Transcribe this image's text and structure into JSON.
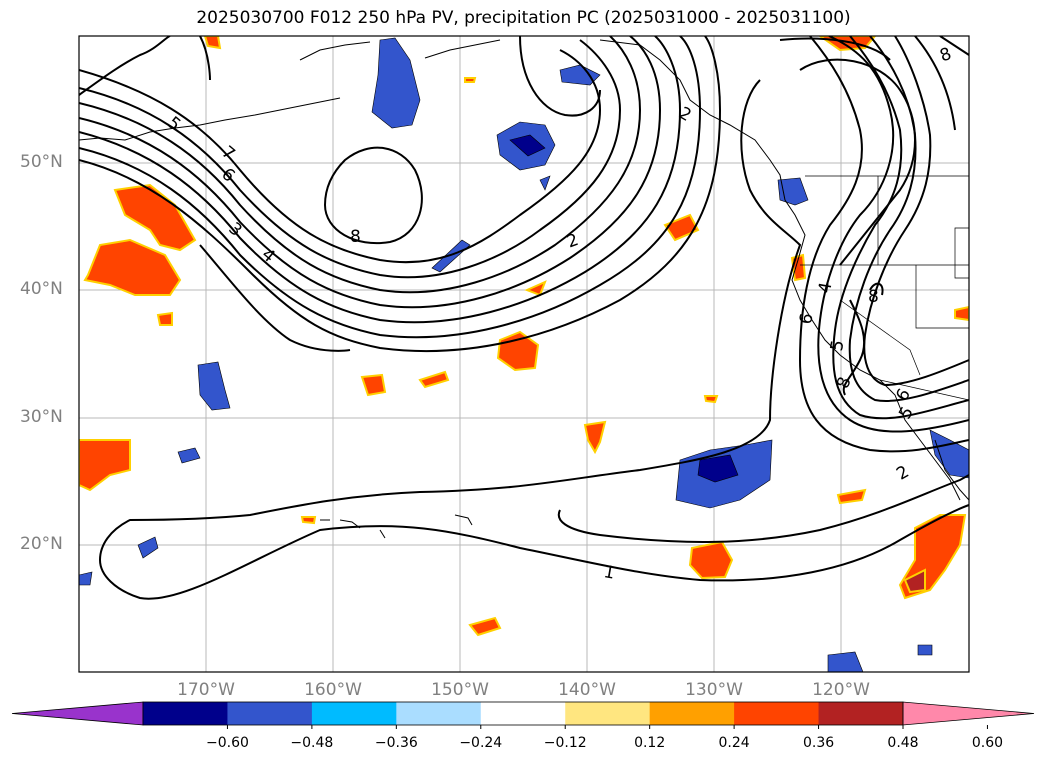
{
  "title": "2025030700 F012 250 hPa PV, precipitation PC (2025031000 - 2025031100)",
  "lat_labels": [
    "50°N",
    "40°N",
    "30°N",
    "20°N"
  ],
  "lon_labels": [
    "170°W",
    "160°W",
    "150°W",
    "140°W",
    "130°W",
    "120°W"
  ],
  "contour_labels": [
    "5",
    "7",
    "6",
    "3",
    "4",
    "8",
    "2",
    "1",
    "2",
    "4",
    "8",
    "5",
    "8",
    "6",
    "6",
    "5",
    "2",
    "8"
  ],
  "colorbar": {
    "colors": [
      "#9933cc",
      "#00008b",
      "#3355cc",
      "#00bbff",
      "#aaddff",
      "#ffffff",
      "#ffe680",
      "#ffa000",
      "#ff4400",
      "#b22222",
      "#ff88aa"
    ],
    "tick_labels": [
      "−0.60",
      "−0.48",
      "−0.36",
      "−0.24",
      "−0.12",
      "0.12",
      "0.24",
      "0.36",
      "0.48",
      "0.60"
    ]
  }
}
